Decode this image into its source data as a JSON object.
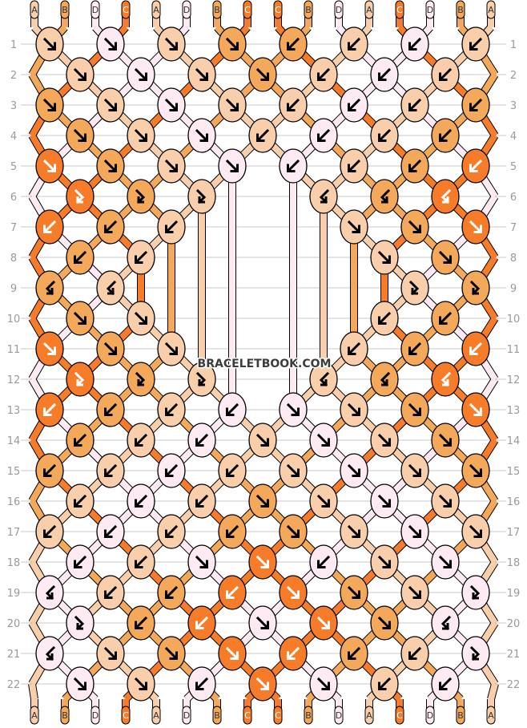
{
  "watermark": "BRACELETBOOK.COM",
  "colors": {
    "A": "#f9cfab",
    "B": "#f4a85a",
    "C": "#f77c2a",
    "D": "#fdeaf3"
  },
  "label_text_colors": {
    "A": "#333333",
    "B": "#333333",
    "C": "#ffffff",
    "D": "#333333"
  },
  "top_strands": [
    "A",
    "B",
    "D",
    "C",
    "A",
    "D",
    "B",
    "C",
    "C",
    "B",
    "D",
    "A",
    "C",
    "D",
    "B",
    "A"
  ],
  "bottom_strands": [
    "A",
    "B",
    "D",
    "C",
    "A",
    "D",
    "B",
    "C",
    "C",
    "B",
    "D",
    "A",
    "C",
    "D",
    "B",
    "A"
  ],
  "row_labels": [
    "1",
    "2",
    "3",
    "4",
    "5",
    "6",
    "7",
    "8",
    "9",
    "10",
    "11",
    "12",
    "13",
    "14",
    "15",
    "16",
    "17",
    "18",
    "19",
    "20",
    "21",
    "22"
  ],
  "knot_legend": {
    "f": "forward",
    "b": "backward",
    "fb": "forward-backward",
    "bf": "backward-forward"
  },
  "knots": [
    [
      "A f",
      "D f",
      "A f",
      "B f",
      "B b",
      "A b",
      "D b",
      "A b"
    ],
    [
      "A f",
      "D f",
      "A f",
      "B f",
      "A b",
      "D b",
      "A b"
    ],
    [
      "B f",
      "A f",
      "D f",
      "A f",
      "A b",
      "D b",
      "A b",
      "B b"
    ],
    [
      "B f",
      "A f",
      "D f",
      "A b",
      "D b",
      "A b",
      "B b"
    ],
    [
      "C f",
      "B f",
      "A f",
      "D f",
      "D b",
      "A b",
      "B b",
      "C b"
    ],
    [
      "C fb",
      "B fb",
      "A fb",
      null,
      "A bf",
      "B bf",
      "C bf"
    ],
    [
      "C b",
      "B b",
      "A b",
      null,
      null,
      "A f",
      "B f",
      "C f"
    ],
    [
      "B b",
      "A b",
      null,
      null,
      null,
      "A f",
      "B f"
    ],
    [
      "B bf",
      "A bf",
      null,
      null,
      null,
      null,
      "A fb",
      "B fb"
    ],
    [
      "B f",
      "A f",
      null,
      null,
      null,
      "A b",
      "B b"
    ],
    [
      "C f",
      "B f",
      "A f",
      null,
      null,
      "A b",
      "B b",
      "C b"
    ],
    [
      "C fb",
      "B fb",
      "A fb",
      null,
      "A bf",
      "B bf",
      "C bf"
    ],
    [
      "C b",
      "B b",
      "A b",
      "D b",
      "D f",
      "A f",
      "B f",
      "C f"
    ],
    [
      "B b",
      "A b",
      "D b",
      "A f",
      "D f",
      "A f",
      "B f"
    ],
    [
      "B b",
      "A b",
      "D b",
      "A b",
      "A f",
      "D f",
      "A f",
      "B f"
    ],
    [
      "A b",
      "D b",
      "A b",
      "B f",
      "A f",
      "D f",
      "A f"
    ],
    [
      "A b",
      "D b",
      "A b",
      "B b",
      "B f",
      "A f",
      "D f",
      "A f"
    ],
    [
      "D b",
      "A b",
      "D f",
      "C f",
      "D b",
      "A f",
      "D f"
    ],
    [
      "D bf",
      "A b",
      "B b",
      "C b",
      "C f",
      "B f",
      "A f",
      "D fb"
    ],
    [
      "D fb",
      "B b",
      "C b",
      "D f",
      "C f",
      "B f",
      "D bf"
    ],
    [
      "D bf",
      "A f",
      "B f",
      "C f",
      "C b",
      "B b",
      "A b",
      "D fb"
    ],
    [
      "D f",
      "A f",
      "D b",
      "C f",
      "D f",
      "A b",
      "D b"
    ]
  ]
}
